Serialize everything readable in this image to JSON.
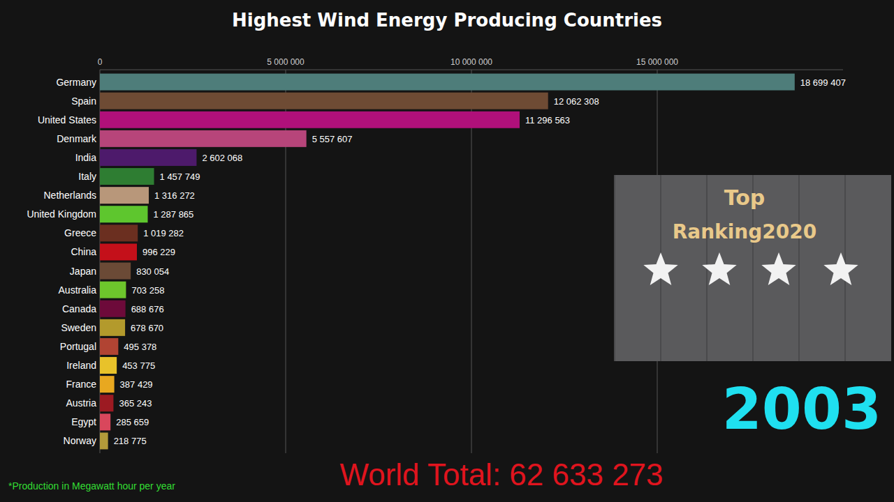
{
  "chart_data": {
    "type": "bar",
    "orientation": "horizontal",
    "title": "Highest Wind Energy Producing Countries",
    "categories": [
      "Germany",
      "Spain",
      "United States",
      "Denmark",
      "India",
      "Italy",
      "Netherlands",
      "United Kingdom",
      "Greece",
      "China",
      "Japan",
      "Australia",
      "Canada",
      "Sweden",
      "Portugal",
      "Ireland",
      "France",
      "Austria",
      "Egypt",
      "Norway"
    ],
    "values": [
      18699407,
      12062308,
      11296563,
      5557607,
      2602068,
      1457749,
      1316272,
      1287865,
      1019282,
      996229,
      830054,
      703258,
      688676,
      678670,
      495378,
      453775,
      387429,
      365243,
      285659,
      218775
    ],
    "value_labels": [
      "18 699 407",
      "12 062 308",
      "11 296 563",
      "5 557 607",
      "2 602 068",
      "1 457 749",
      "1 316 272",
      "1 287 865",
      "1 019 282",
      "996 229",
      "830 054",
      "703 258",
      "688 676",
      "678 670",
      "495 378",
      "453 775",
      "387 429",
      "365 243",
      "285 659",
      "218 775"
    ],
    "colors": [
      "#4e7d7a",
      "#6e4b34",
      "#b0107a",
      "#b7457a",
      "#4d1a6b",
      "#2e7d32",
      "#b8977a",
      "#5ec62e",
      "#6b2f20",
      "#c4101a",
      "#6b4a36",
      "#6dc62c",
      "#6d0a3a",
      "#b39a2c",
      "#b14433",
      "#e8c22a",
      "#e8a820",
      "#9c1a22",
      "#d9475c",
      "#b39a3a"
    ],
    "xlim": [
      0,
      20000000
    ],
    "xticks": [
      0,
      {
        "value": 5000000,
        "label": "5 000 000"
      },
      {
        "value": 10000000,
        "label": "10 000 000"
      },
      {
        "value": 15000000,
        "label": "15 000 000"
      }
    ],
    "grid": true,
    "data_labels": true,
    "annotations": [
      "2003",
      "World Total: 62 633 273",
      "*Production in Megawatt hour per year",
      "Top",
      "Ranking2020"
    ]
  }
}
